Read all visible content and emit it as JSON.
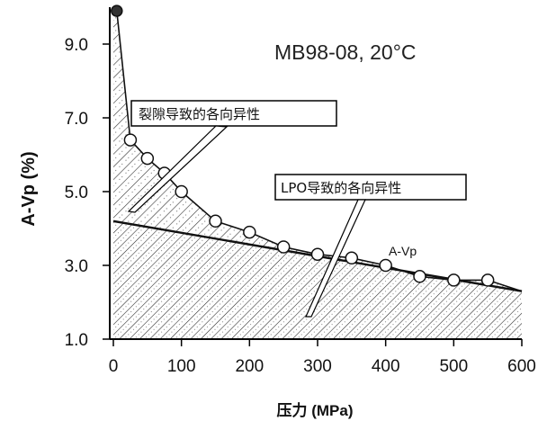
{
  "chart_data": {
    "type": "scatter",
    "title": "MB98-08, 20°C",
    "xlabel": "压力 (MPa)",
    "ylabel": "A-Vp (%)",
    "xlim": [
      0,
      600
    ],
    "ylim": [
      1.0,
      10.0
    ],
    "x_ticks": [
      "0",
      "100",
      "200",
      "300",
      "400",
      "500",
      "600"
    ],
    "y_ticks": [
      "1.0",
      "3.0",
      "5.0",
      "7.0",
      "9.0"
    ],
    "series": [
      {
        "name": "A-Vp",
        "x": [
          5,
          25,
          50,
          75,
          100,
          150,
          200,
          250,
          300,
          350,
          400,
          450,
          500,
          550
        ],
        "y": [
          9.9,
          6.4,
          5.9,
          5.5,
          5.0,
          4.2,
          3.9,
          3.5,
          3.3,
          3.2,
          3.0,
          2.7,
          2.6,
          2.6
        ]
      }
    ],
    "trend_line": {
      "x": [
        0,
        600
      ],
      "y": [
        4.2,
        2.3
      ]
    },
    "annotations": [
      {
        "text": "裂隙导致的各向异性",
        "target": "upper hatched region (crack-induced)"
      },
      {
        "text": "LPO导致的各向异性",
        "target": "lower hatched region (LPO-induced)"
      }
    ],
    "grid": false,
    "legend": "none"
  }
}
